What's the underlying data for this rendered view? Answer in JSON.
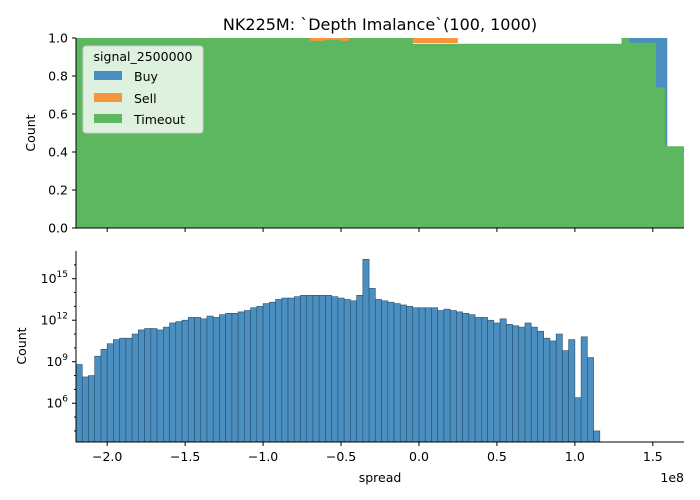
{
  "title": "NK225M: `Depth Imalance`(100, 1000)",
  "chart_data": [
    {
      "type": "area",
      "subtype": "stacked-fill-histogram",
      "ylabel": "Count",
      "ylim": [
        0,
        1
      ],
      "yticks": [
        "0.0",
        "0.2",
        "0.4",
        "0.6",
        "0.8",
        "1.0"
      ],
      "legend": {
        "title": "signal_2500000",
        "placement": "upper-left",
        "entries": [
          "Buy",
          "Sell",
          "Timeout"
        ]
      },
      "x_range": [
        -220000000,
        170000000
      ],
      "series": [
        {
          "name": "Timeout",
          "color": "#5db760",
          "x": [
            -220000000,
            -75000000,
            -70000000,
            -60000000,
            -50000000,
            -45000000,
            -5000000,
            -4000000,
            130000000,
            135000000,
            150000000,
            152000000,
            155000000,
            158000000,
            170000000
          ],
          "values": [
            1.0,
            1.0,
            0.985,
            0.99,
            0.985,
            1.0,
            1.0,
            0.97,
            1.0,
            0.975,
            0.975,
            0.74,
            0.74,
            0.43,
            1.0
          ]
        },
        {
          "name": "Sell",
          "color": "#f5963d",
          "note_values": "small slivers just below 1.0",
          "x": [
            -97000000,
            -75000000,
            -70000000,
            -60000000,
            -50000000,
            -45000000,
            -5000000,
            -4000000,
            20000000,
            25000000
          ],
          "values": [
            0.995,
            0.985,
            0.985,
            0.99,
            0.985,
            0.995,
            0.97,
            0.97,
            0.995,
            0.995
          ]
        },
        {
          "name": "Buy",
          "color": "#4a8fbf",
          "x": [
            130000000,
            135000000,
            150000000,
            152000000,
            155000000,
            158000000
          ],
          "values": [
            0.975,
            0.975,
            0.74,
            0.74,
            0.43,
            0.43
          ]
        }
      ]
    },
    {
      "type": "bar",
      "subtype": "histogram",
      "xlabel": "spread",
      "ylabel": "Count",
      "yscale": "log",
      "x_range": [
        -220000000,
        170000000
      ],
      "x_offset_label": "1e8",
      "xticks": [
        "−2.0",
        "−1.5",
        "−1.0",
        "−0.5",
        "0.0",
        "0.5",
        "1.0",
        "1.5"
      ],
      "xtick_values": [
        -200000000,
        -150000000,
        -100000000,
        -50000000,
        0,
        50000000,
        100000000,
        150000000
      ],
      "yticks": [
        "10^6",
        "10^9",
        "10^12",
        "10^15"
      ],
      "ytick_values": [
        6,
        9,
        12,
        15
      ],
      "ylim_log10": [
        3.2,
        17.0
      ],
      "bar_color": "#4a8fbf",
      "bin_width": 4000000,
      "x_start": -220000000,
      "log10_counts": [
        8.8,
        7.9,
        8.0,
        9.4,
        9.9,
        10.3,
        10.6,
        10.7,
        10.7,
        11.0,
        11.3,
        11.4,
        11.4,
        11.3,
        11.5,
        11.8,
        11.9,
        12.0,
        12.2,
        12.2,
        12.1,
        12.3,
        12.2,
        12.4,
        12.5,
        12.5,
        12.6,
        12.7,
        12.9,
        13.0,
        13.2,
        13.3,
        13.5,
        13.6,
        13.6,
        13.7,
        13.8,
        13.8,
        13.8,
        13.8,
        13.8,
        13.7,
        13.6,
        13.5,
        13.4,
        13.8,
        16.4,
        14.3,
        13.5,
        13.4,
        13.3,
        13.2,
        13.1,
        13.0,
        12.9,
        12.9,
        12.9,
        12.9,
        12.7,
        12.8,
        12.7,
        12.6,
        12.5,
        12.4,
        12.2,
        12.2,
        12.0,
        11.8,
        12.1,
        11.7,
        11.6,
        11.5,
        11.8,
        11.5,
        11.2,
        10.7,
        10.5,
        11.0,
        9.8,
        10.6,
        6.4,
        10.8,
        9.3,
        4.0
      ]
    }
  ]
}
